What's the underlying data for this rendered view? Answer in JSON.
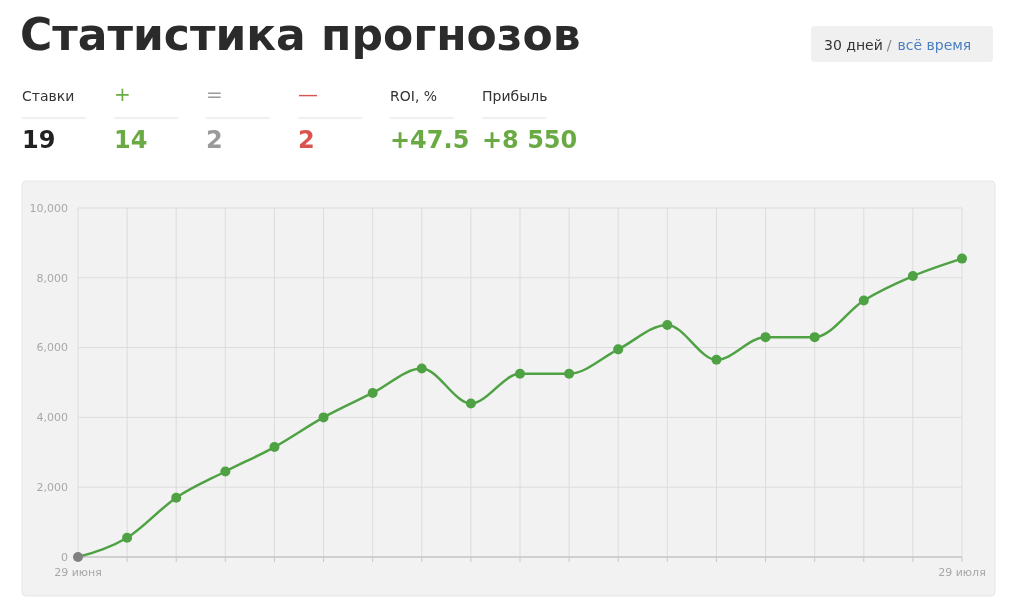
{
  "chart_data": [
    {
      "type": "other",
      "title": "Статистика прогнозов",
      "annotations": [
        "30 дней",
        "/",
        "всё время",
        "Ставки",
        "+",
        "=",
        "—",
        "ROI, %",
        "Прибыль",
        "19",
        "14",
        "2",
        "2",
        "+47.5",
        "+8 550"
      ]
    },
    {
      "type": "line",
      "categories": [
        "29 июня",
        null,
        null,
        null,
        null,
        null,
        null,
        null,
        null,
        null,
        null,
        null,
        null,
        null,
        null,
        null,
        null,
        null,
        "29 июля"
      ],
      "series": [
        {
          "color": "#4ea243",
          "colors": [
            "#808080",
            "#4ea243",
            "#4ea243",
            "#4ea243",
            "#4ea243",
            "#4ea243",
            "#4ea243",
            "#4ea243",
            "#4ea243",
            "#4ea243",
            "#4ea243",
            "#4ea243",
            "#4ea243",
            "#4ea243",
            "#4ea243",
            "#4ea243",
            "#4ea243",
            "#4ea243",
            "#4ea243"
          ],
          "values": [
            0,
            550,
            1700,
            2450,
            3150,
            4000,
            4700,
            5400,
            4400,
            5250,
            5250,
            5950,
            6650,
            5650,
            6300,
            6300,
            7350,
            8050,
            8550
          ]
        }
      ],
      "ylim": [
        0,
        10000
      ],
      "yticks": [
        0,
        {
          "value": 2000,
          "label": "2,000"
        },
        {
          "value": 4000,
          "label": "4,000"
        },
        {
          "value": 6000,
          "label": "6,000"
        },
        {
          "value": 8000,
          "label": "8,000"
        },
        {
          "value": 10000,
          "label": "10,000"
        }
      ],
      "grid": true,
      "marker": "circle",
      "line_style": "solid"
    }
  ]
}
